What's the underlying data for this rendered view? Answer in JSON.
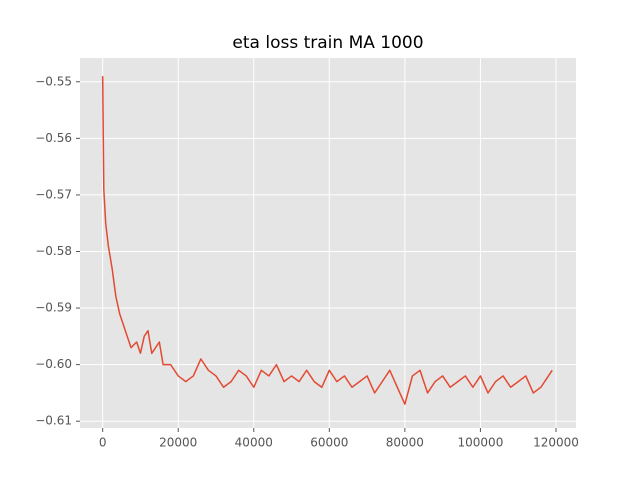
{
  "chart_data": {
    "type": "line",
    "title": "eta loss train MA 1000",
    "x": [
      0,
      300,
      800,
      1500,
      2500,
      3500,
      4500,
      5500,
      6500,
      7500,
      9000,
      10000,
      11000,
      12000,
      13000,
      14000,
      15000,
      16000,
      18000,
      20000,
      22000,
      24000,
      26000,
      28000,
      30000,
      32000,
      34000,
      36000,
      38000,
      40000,
      42000,
      44000,
      46000,
      48000,
      50000,
      52000,
      54000,
      56000,
      58000,
      60000,
      62000,
      64000,
      66000,
      68000,
      70000,
      72000,
      74000,
      76000,
      78000,
      80000,
      82000,
      84000,
      86000,
      88000,
      90000,
      92000,
      94000,
      96000,
      98000,
      100000,
      102000,
      104000,
      106000,
      108000,
      110000,
      112000,
      114000,
      116000,
      118000,
      119000
    ],
    "series": [
      {
        "color": "#E24A33",
        "values": [
          -0.549,
          -0.569,
          -0.575,
          -0.579,
          -0.583,
          -0.588,
          -0.591,
          -0.593,
          -0.595,
          -0.597,
          -0.596,
          -0.598,
          -0.595,
          -0.594,
          -0.598,
          -0.597,
          -0.596,
          -0.6,
          -0.6,
          -0.602,
          -0.603,
          -0.602,
          -0.599,
          -0.601,
          -0.602,
          -0.604,
          -0.603,
          -0.601,
          -0.602,
          -0.604,
          -0.601,
          -0.602,
          -0.6,
          -0.603,
          -0.602,
          -0.603,
          -0.601,
          -0.603,
          -0.604,
          -0.601,
          -0.603,
          -0.602,
          -0.604,
          -0.603,
          -0.602,
          -0.605,
          -0.603,
          -0.601,
          -0.604,
          -0.607,
          -0.602,
          -0.601,
          -0.605,
          -0.603,
          -0.602,
          -0.604,
          -0.603,
          -0.602,
          -0.604,
          -0.602,
          -0.605,
          -0.603,
          -0.602,
          -0.604,
          -0.603,
          -0.602,
          -0.605,
          -0.604,
          -0.602,
          -0.601
        ]
      }
    ],
    "xlim": [
      -6000,
      125300
    ],
    "ylim": [
      -0.6112,
      -0.5458
    ],
    "xticks": [
      0,
      20000,
      40000,
      60000,
      80000,
      100000,
      120000
    ],
    "yticks": [
      {
        "value": -0.61,
        "label": "−0.61"
      },
      {
        "value": -0.6,
        "label": "−0.60"
      },
      {
        "value": -0.59,
        "label": "−0.59"
      },
      {
        "value": -0.58,
        "label": "−0.58"
      },
      {
        "value": -0.57,
        "label": "−0.57"
      },
      {
        "value": -0.56,
        "label": "−0.56"
      },
      {
        "value": -0.55,
        "label": "−0.55"
      }
    ],
    "grid": true
  }
}
